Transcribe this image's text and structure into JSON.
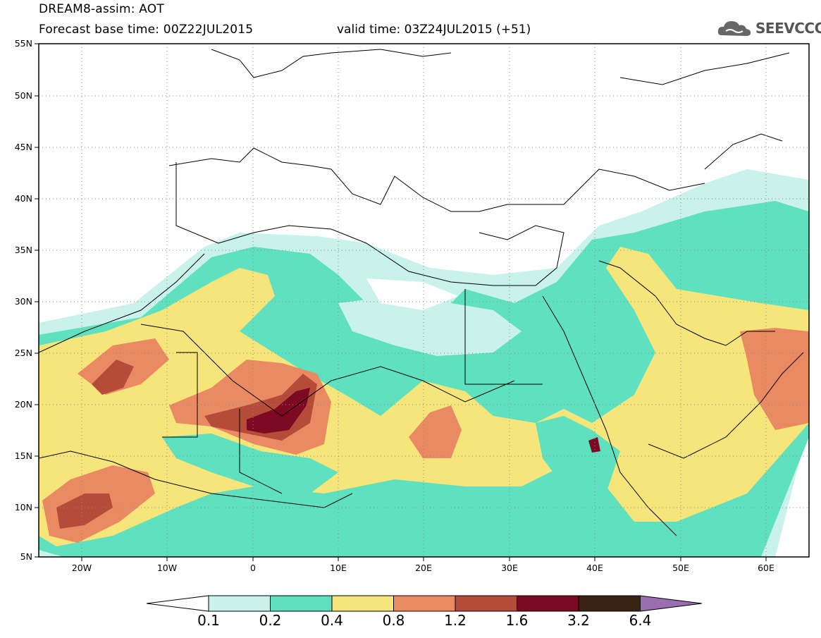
{
  "header": {
    "title": "DREAM8-assim: AOT",
    "forecast": "Forecast base time: 00Z22JUL2015",
    "valid": "valid time: 03Z24JUL2015 (+51)"
  },
  "logo": {
    "text": "SEEVCCC",
    "icon": "cloud-icon"
  },
  "map": {
    "lon_range": [
      -25,
      65
    ],
    "lat_range": [
      5,
      55
    ],
    "y_ticks": [
      "55N",
      "50N",
      "45N",
      "40N",
      "35N",
      "30N",
      "25N",
      "20N",
      "15N",
      "10N",
      "5N"
    ],
    "x_ticks": [
      "20W",
      "10W",
      "0",
      "10E",
      "20E",
      "30E",
      "40E",
      "50E",
      "60E"
    ],
    "grid": "dotted"
  },
  "colorbar": {
    "labels": [
      "0.1",
      "0.2",
      "0.4",
      "0.8",
      "1.2",
      "1.6",
      "3.2",
      "6.4"
    ],
    "colors": [
      "#ffffff",
      "#c8f2ea",
      "#5fe0be",
      "#f5e57a",
      "#e98a62",
      "#b54c3a",
      "#7d0a22",
      "#3b2314",
      "#9a6fb0"
    ]
  },
  "palette": {
    "c1": "#c8f2ea",
    "c2": "#5fe0be",
    "c3": "#f5e57a",
    "c4": "#e98a62",
    "c5": "#b54c3a",
    "c6": "#7d0a22"
  }
}
